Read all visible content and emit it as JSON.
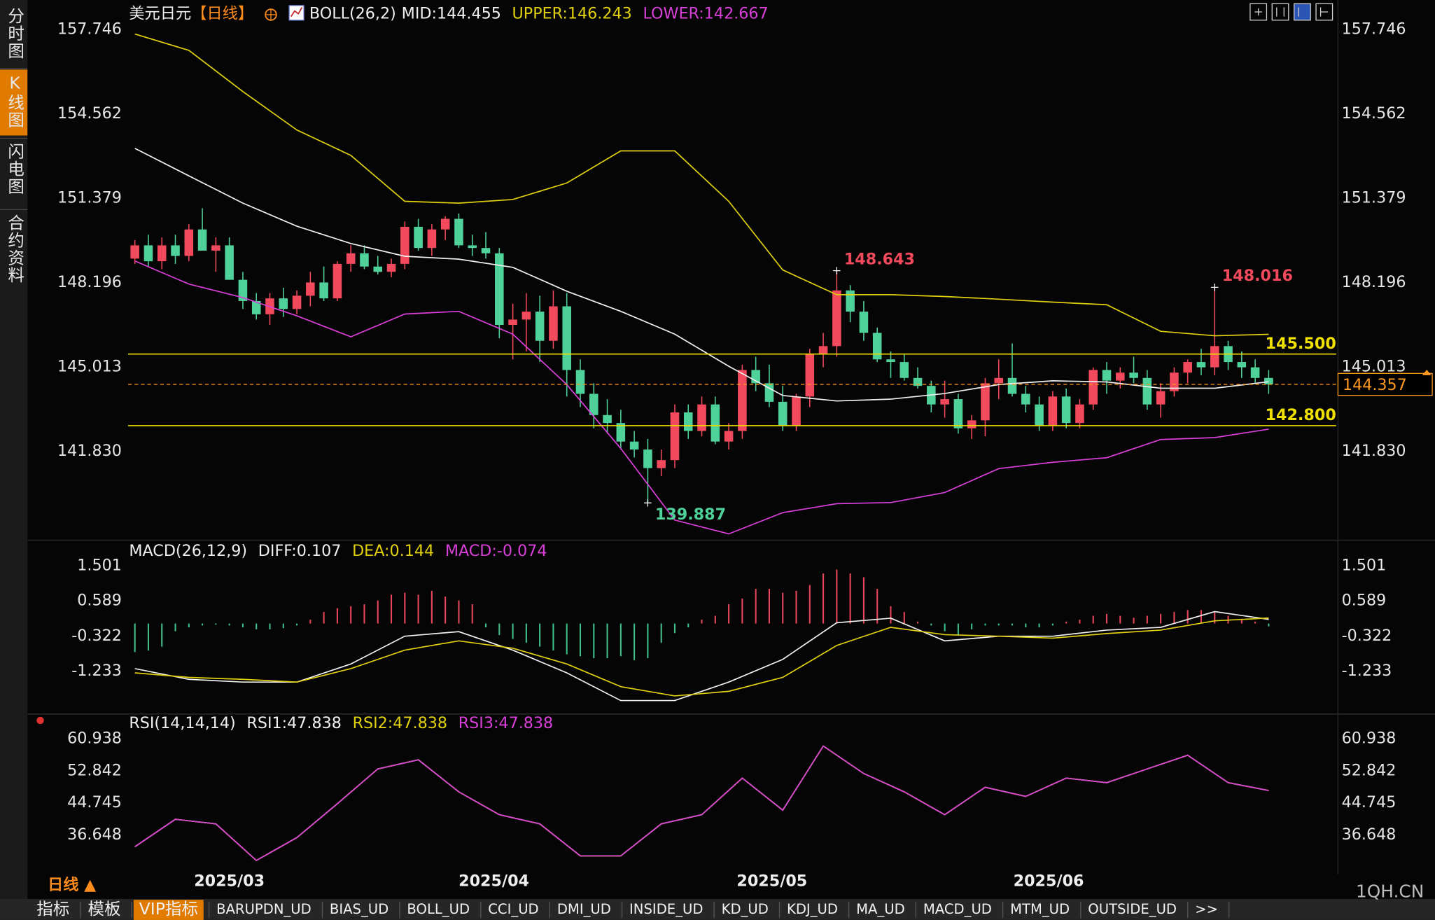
{
  "chart_data": [
    {
      "type": "candlestick",
      "title": "美元日元",
      "period": "【日线】",
      "indicator": "BOLL(26,2)",
      "up_color": "#f2495c",
      "down_color": "#4fd19a",
      "xlim": [
        -0.5,
        89
      ],
      "ylim": [
        138.485,
        158.574
      ],
      "yticks": [
        157.746,
        154.562,
        151.379,
        148.196,
        145.013,
        {
          "value": 141.83,
          "label": "141.830"
        }
      ],
      "grid": false,
      "candles": [
        [
          149.1,
          149.8,
          148.9,
          149.6
        ],
        [
          149.6,
          150.0,
          148.8,
          149.0
        ],
        [
          149.0,
          149.9,
          148.7,
          149.6
        ],
        [
          149.6,
          150.0,
          148.9,
          149.2
        ],
        [
          149.2,
          150.4,
          149.0,
          150.2
        ],
        [
          150.2,
          151.0,
          149.4,
          149.4
        ],
        [
          149.4,
          149.9,
          148.6,
          149.6
        ],
        [
          149.6,
          149.9,
          148.4,
          148.3
        ],
        [
          148.3,
          148.6,
          147.2,
          147.5
        ],
        [
          147.5,
          147.8,
          146.8,
          147.0
        ],
        [
          147.0,
          147.8,
          146.6,
          147.6
        ],
        [
          147.6,
          148.0,
          146.9,
          147.2
        ],
        [
          147.2,
          147.9,
          147.0,
          147.7
        ],
        [
          147.7,
          148.6,
          147.3,
          148.2
        ],
        [
          148.2,
          148.8,
          147.5,
          147.6
        ],
        [
          147.6,
          149.0,
          147.5,
          148.9
        ],
        [
          148.9,
          149.6,
          148.6,
          149.3
        ],
        [
          149.3,
          149.6,
          148.7,
          148.8
        ],
        [
          148.8,
          149.2,
          148.5,
          148.6
        ],
        [
          148.6,
          149.1,
          148.4,
          148.9
        ],
        [
          148.9,
          150.5,
          148.7,
          150.3
        ],
        [
          150.3,
          150.6,
          149.4,
          149.5
        ],
        [
          149.5,
          150.4,
          149.2,
          150.2
        ],
        [
          150.2,
          150.7,
          149.8,
          150.6
        ],
        [
          150.6,
          150.8,
          149.5,
          149.6
        ],
        [
          149.6,
          150.0,
          149.2,
          149.5
        ],
        [
          149.5,
          150.1,
          149.1,
          149.3
        ],
        [
          149.3,
          149.5,
          146.1,
          146.6
        ],
        [
          146.6,
          147.4,
          145.3,
          146.8
        ],
        [
          146.8,
          147.8,
          145.6,
          147.1
        ],
        [
          147.1,
          147.7,
          145.2,
          146.0
        ],
        [
          146.0,
          147.9,
          145.7,
          147.3
        ],
        [
          147.3,
          147.8,
          143.9,
          144.9
        ],
        [
          144.9,
          145.3,
          143.5,
          144.0
        ],
        [
          144.0,
          144.4,
          142.7,
          143.2
        ],
        [
          143.2,
          143.8,
          142.5,
          142.9
        ],
        [
          142.9,
          143.4,
          141.9,
          142.2
        ],
        [
          142.2,
          142.6,
          141.6,
          141.9
        ],
        [
          141.9,
          142.3,
          139.887,
          141.2
        ],
        [
          141.2,
          141.9,
          140.9,
          141.5
        ],
        [
          141.5,
          143.6,
          141.2,
          143.3
        ],
        [
          143.3,
          143.6,
          142.3,
          142.6
        ],
        [
          142.6,
          143.9,
          142.4,
          143.6
        ],
        [
          143.6,
          143.9,
          142.1,
          142.2
        ],
        [
          142.2,
          142.9,
          141.9,
          142.6
        ],
        [
          142.6,
          145.1,
          142.3,
          144.9
        ],
        [
          144.9,
          145.4,
          144.1,
          144.4
        ],
        [
          144.4,
          145.1,
          143.5,
          143.7
        ],
        [
          143.7,
          144.3,
          142.6,
          142.8
        ],
        [
          142.8,
          144.0,
          142.6,
          143.9
        ],
        [
          143.9,
          145.7,
          143.5,
          145.5
        ],
        [
          145.5,
          146.3,
          145.0,
          145.8
        ],
        [
          145.8,
          148.643,
          145.4,
          147.9
        ],
        [
          147.9,
          148.1,
          146.7,
          147.1
        ],
        [
          147.1,
          147.5,
          146.0,
          146.3
        ],
        [
          146.3,
          146.5,
          145.2,
          145.3
        ],
        [
          145.3,
          145.6,
          144.6,
          145.2
        ],
        [
          145.2,
          145.5,
          144.5,
          144.6
        ],
        [
          144.6,
          145.0,
          144.2,
          144.3
        ],
        [
          144.3,
          144.5,
          143.3,
          143.6
        ],
        [
          143.6,
          144.5,
          143.1,
          143.8
        ],
        [
          143.8,
          144.0,
          142.5,
          142.7
        ],
        [
          142.7,
          143.2,
          142.3,
          143.0
        ],
        [
          143.0,
          144.6,
          142.4,
          144.4
        ],
        [
          144.4,
          145.3,
          143.8,
          144.6
        ],
        [
          144.6,
          145.9,
          143.9,
          144.0
        ],
        [
          144.0,
          144.3,
          143.3,
          143.6
        ],
        [
          143.6,
          143.9,
          142.6,
          142.8
        ],
        [
          142.8,
          144.1,
          142.6,
          143.9
        ],
        [
          143.9,
          144.2,
          142.7,
          142.9
        ],
        [
          142.9,
          143.8,
          142.7,
          143.6
        ],
        [
          143.6,
          145.0,
          143.4,
          144.9
        ],
        [
          144.9,
          145.2,
          144.0,
          144.5
        ],
        [
          144.5,
          145.0,
          144.2,
          144.8
        ],
        [
          144.8,
          145.4,
          144.4,
          144.6
        ],
        [
          144.6,
          144.9,
          143.4,
          143.6
        ],
        [
          143.6,
          144.4,
          143.1,
          144.1
        ],
        [
          144.1,
          145.0,
          143.9,
          144.8
        ],
        [
          144.8,
          145.3,
          144.4,
          145.2
        ],
        [
          145.2,
          145.7,
          144.7,
          145.0
        ],
        [
          145.0,
          148.016,
          144.7,
          145.8
        ],
        [
          145.8,
          146.0,
          144.9,
          145.2
        ],
        [
          145.2,
          145.6,
          144.6,
          145.0
        ],
        [
          145.0,
          145.3,
          144.4,
          144.6
        ],
        [
          144.6,
          144.9,
          144.0,
          144.357
        ]
      ],
      "series": [
        {
          "name": "MID:144.455",
          "color": "#f0f0f0",
          "x": [
            0,
            4,
            8,
            12,
            16,
            20,
            24,
            28,
            32,
            36,
            40,
            44,
            48,
            52,
            56,
            60,
            64,
            68,
            72,
            76,
            80,
            84
          ],
          "values": [
            153.26,
            152.22,
            151.19,
            150.32,
            149.67,
            149.19,
            149.08,
            148.77,
            147.87,
            147.11,
            146.25,
            145.04,
            143.94,
            143.73,
            143.8,
            144.01,
            144.35,
            144.49,
            144.45,
            144.21,
            144.21,
            144.455
          ]
        },
        {
          "name": "UPPER:146.243",
          "color": "#e0d010",
          "x": [
            0,
            4,
            8,
            12,
            16,
            20,
            24,
            28,
            32,
            36,
            40,
            44,
            48,
            52,
            56,
            60,
            64,
            68,
            72,
            76,
            80,
            84
          ],
          "values": [
            157.57,
            156.95,
            155.4,
            153.95,
            152.99,
            151.26,
            151.19,
            151.33,
            151.95,
            153.16,
            153.16,
            151.26,
            148.67,
            147.74,
            147.74,
            147.67,
            147.57,
            147.46,
            147.36,
            146.36,
            146.19,
            146.243
          ]
        },
        {
          "name": "LOWER:142.667",
          "color": "#d93fd9",
          "x": [
            0,
            4,
            8,
            12,
            16,
            20,
            24,
            28,
            32,
            36,
            40,
            44,
            48,
            52,
            56,
            60,
            64,
            68,
            72,
            76,
            80,
            84
          ],
          "values": [
            149.01,
            148.14,
            147.63,
            146.94,
            146.15,
            147.01,
            147.11,
            146.25,
            144.35,
            141.94,
            139.24,
            138.72,
            139.52,
            139.86,
            139.9,
            140.28,
            141.18,
            141.42,
            141.59,
            142.28,
            142.35,
            142.667
          ]
        }
      ],
      "hlines": [
        {
          "value": 145.5,
          "label": "145.500",
          "color": "#f0e000"
        },
        {
          "value": 142.8,
          "label": "142.800",
          "color": "#f0e000"
        }
      ],
      "annotations": [
        {
          "x": 52,
          "value": 148.643,
          "position": "above",
          "color": "#f2495c"
        },
        {
          "x": 80,
          "value": 148.016,
          "position": "above",
          "color": "#f2495c"
        },
        {
          "x": 38,
          "value": 139.887,
          "position": "below",
          "color": "#4fd19a"
        }
      ],
      "last_price": 144.357,
      "last_color": "#ff9a1e"
    },
    {
      "type": "macd",
      "title": "MACD(26,12,9)",
      "xlim": [
        -0.5,
        89
      ],
      "ylim": [
        -2.35,
        1.81
      ],
      "yticks": [
        1.501,
        0.589,
        -0.322,
        -1.233
      ],
      "grid": false,
      "series": [
        {
          "name": "DIFF:0.107",
          "color": "#f0f0f0",
          "x": [
            0,
            4,
            8,
            12,
            16,
            20,
            24,
            28,
            32,
            36,
            40,
            44,
            48,
            52,
            56,
            60,
            64,
            68,
            72,
            76,
            80,
            84
          ],
          "values": [
            -1.17,
            -1.45,
            -1.52,
            -1.52,
            -1.05,
            -0.33,
            -0.21,
            -0.69,
            -1.28,
            -2.0,
            -2.0,
            -1.52,
            -0.93,
            0.02,
            0.14,
            -0.45,
            -0.33,
            -0.33,
            -0.17,
            -0.1,
            0.31,
            0.107
          ]
        },
        {
          "name": "DEA:0.144",
          "color": "#e0d010",
          "x": [
            0,
            4,
            8,
            12,
            16,
            20,
            24,
            28,
            32,
            36,
            40,
            44,
            48,
            52,
            56,
            60,
            64,
            68,
            72,
            76,
            80,
            84
          ],
          "values": [
            -1.28,
            -1.4,
            -1.45,
            -1.52,
            -1.17,
            -0.69,
            -0.45,
            -0.64,
            -1.05,
            -1.64,
            -1.88,
            -1.76,
            -1.4,
            -0.57,
            -0.1,
            -0.29,
            -0.33,
            -0.38,
            -0.26,
            -0.17,
            0.07,
            0.144
          ]
        }
      ],
      "histogram": {
        "name": "MACD:-0.074",
        "color": "#d93fd9",
        "up_color": "#e8465a",
        "down_color": "#3fbf8a",
        "values": [
          -0.74,
          -0.7,
          -0.6,
          -0.2,
          -0.1,
          -0.05,
          -0.03,
          -0.05,
          -0.1,
          -0.15,
          -0.15,
          -0.12,
          -0.05,
          0.1,
          0.3,
          0.4,
          0.45,
          0.5,
          0.6,
          0.75,
          0.8,
          0.75,
          0.85,
          0.7,
          0.6,
          0.5,
          -0.1,
          -0.3,
          -0.4,
          -0.5,
          -0.6,
          -0.7,
          -0.8,
          -0.85,
          -0.9,
          -0.9,
          -0.85,
          -0.95,
          -0.9,
          -0.5,
          -0.25,
          -0.1,
          0.1,
          0.2,
          0.5,
          0.65,
          0.9,
          0.9,
          0.8,
          0.85,
          1.0,
          1.3,
          1.4,
          1.3,
          1.2,
          0.9,
          0.45,
          0.3,
          0.05,
          -0.05,
          -0.2,
          -0.3,
          -0.15,
          -0.05,
          -0.05,
          -0.05,
          -0.1,
          -0.1,
          -0.05,
          0.05,
          0.1,
          0.2,
          0.25,
          0.2,
          0.15,
          0.2,
          0.25,
          0.3,
          0.35,
          0.35,
          0.3,
          0.2,
          0.1,
          0.05,
          -0.074
        ]
      }
    },
    {
      "type": "line",
      "title": "RSI(14,14,14)",
      "xlim": [
        -0.5,
        89
      ],
      "ylim": [
        26.7,
        63.71
      ],
      "yticks": [
        60.938,
        52.842,
        44.745,
        36.648
      ],
      "grid": false,
      "xticks": [
        {
          "value": 7,
          "label": "2025/03"
        },
        {
          "value": 26.6,
          "label": "2025/04"
        },
        {
          "value": 47.2,
          "label": "2025/05"
        },
        {
          "value": 67.7,
          "label": "2025/06"
        }
      ],
      "series": [
        {
          "name": "RSI1:47.838",
          "color": "#f0f0f0",
          "x": [
            0,
            3,
            6,
            9,
            12,
            15,
            18,
            21,
            24,
            27,
            30,
            33,
            36,
            39,
            42,
            45,
            48,
            51,
            54,
            57,
            60,
            63,
            66,
            69,
            72,
            75,
            78,
            81,
            84
          ],
          "values": [
            33.64,
            40.58,
            39.42,
            30.17,
            35.95,
            44.51,
            53.3,
            55.62,
            47.52,
            41.74,
            39.42,
            31.33,
            31.33,
            39.42,
            41.74,
            50.99,
            42.89,
            59.09,
            52.15,
            47.52,
            41.74,
            48.68,
            46.36,
            50.99,
            49.83,
            53.3,
            56.77,
            49.83,
            47.838
          ]
        },
        {
          "name": "RSI2:47.838",
          "color": "#e0d010",
          "x": [
            0,
            3,
            6,
            9,
            12,
            15,
            18,
            21,
            24,
            27,
            30,
            33,
            36,
            39,
            42,
            45,
            48,
            51,
            54,
            57,
            60,
            63,
            66,
            69,
            72,
            75,
            78,
            81,
            84
          ],
          "values": [
            33.64,
            40.58,
            39.42,
            30.17,
            35.95,
            44.51,
            53.3,
            55.62,
            47.52,
            41.74,
            39.42,
            31.33,
            31.33,
            39.42,
            41.74,
            50.99,
            42.89,
            59.09,
            52.15,
            47.52,
            41.74,
            48.68,
            46.36,
            50.99,
            49.83,
            53.3,
            56.77,
            49.83,
            47.838
          ]
        },
        {
          "name": "RSI3:47.838",
          "color": "#d93fd9",
          "x": [
            0,
            3,
            6,
            9,
            12,
            15,
            18,
            21,
            24,
            27,
            30,
            33,
            36,
            39,
            42,
            45,
            48,
            51,
            54,
            57,
            60,
            63,
            66,
            69,
            72,
            75,
            78,
            81,
            84
          ],
          "values": [
            33.64,
            40.58,
            39.42,
            30.17,
            35.95,
            44.51,
            53.3,
            55.62,
            47.52,
            41.74,
            39.42,
            31.33,
            31.33,
            39.42,
            41.74,
            50.99,
            42.89,
            59.09,
            52.15,
            47.52,
            41.74,
            48.68,
            46.36,
            50.99,
            49.83,
            53.3,
            56.77,
            49.83,
            47.838
          ]
        }
      ]
    }
  ],
  "sidebar": [
    "分时图",
    "K线图",
    "闪电图",
    "合约资料"
  ],
  "sidebar_active": 1,
  "period_label": "日线 ▲",
  "toolbar": [
    "指标",
    "模板",
    "VIP指标",
    "BARUPDN_UD",
    "BIAS_UD",
    "BOLL_UD",
    "CCI_UD",
    "DMI_UD",
    "INSIDE_UD",
    "KD_UD",
    "KDJ_UD",
    "MA_UD",
    "MACD_UD",
    "MTM_UD",
    "OUTSIDE_UD",
    ">>"
  ],
  "toolbar_active": 2,
  "watermark": "1QH.CN"
}
